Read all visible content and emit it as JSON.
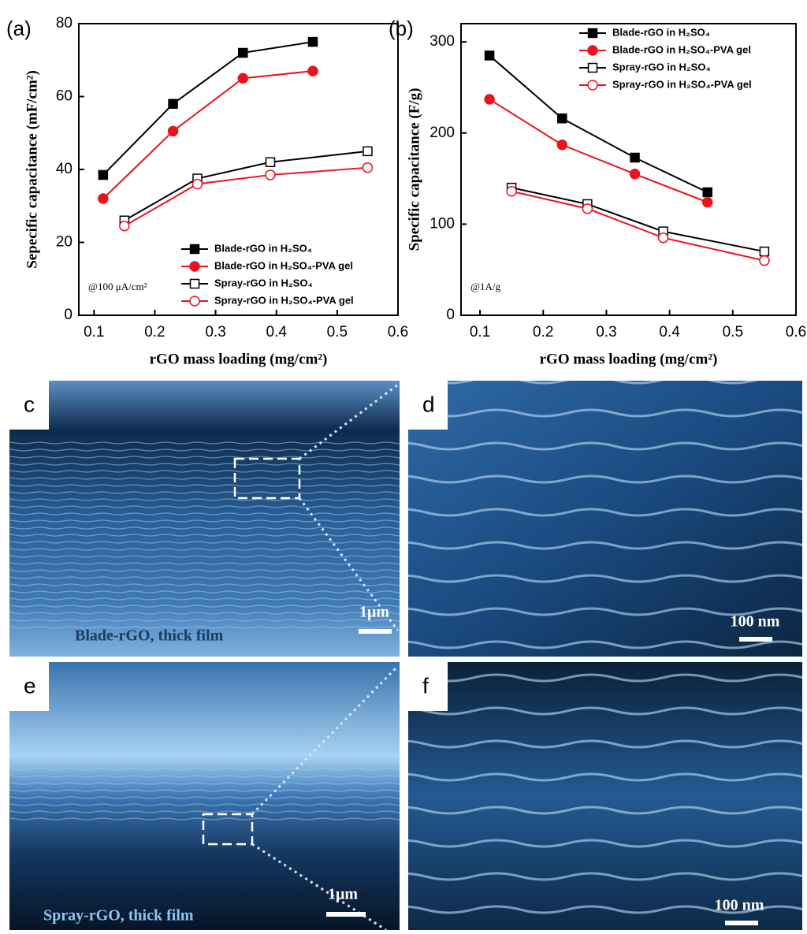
{
  "chart_data": [
    {
      "type": "line",
      "panel_label": "(a)",
      "xlabel": "rGO mass loading (mg/cm²)",
      "ylabel": "Sepecific capacitance (mF/cm²)",
      "annotation": "@100 μA/cm²",
      "xlim": [
        0.075,
        0.6
      ],
      "xticks": [
        0.1,
        0.2,
        0.3,
        0.4,
        0.5,
        0.6
      ],
      "ylim": [
        0,
        80
      ],
      "yticks": [
        0,
        20,
        40,
        60,
        80
      ],
      "legend": "lower right",
      "series": [
        {
          "name": "Blade-rGO in H₂SO₄",
          "color": "#000000",
          "marker": "square",
          "filled": true,
          "x": [
            0.115,
            0.23,
            0.345,
            0.46
          ],
          "values": [
            38.5,
            58,
            72,
            75
          ]
        },
        {
          "name": "Blade-rGO in H₂SO₄-PVA gel",
          "color": "#e8141c",
          "marker": "circle",
          "filled": true,
          "x": [
            0.115,
            0.23,
            0.345,
            0.46
          ],
          "values": [
            32,
            50.5,
            65,
            67
          ]
        },
        {
          "name": "Spray-rGO in H₂SO₄",
          "color": "#000000",
          "marker": "square",
          "filled": false,
          "x": [
            0.15,
            0.27,
            0.39,
            0.55
          ],
          "values": [
            26,
            37.5,
            42,
            45
          ]
        },
        {
          "name": "Spray-rGO in H₂SO₄-PVA gel",
          "color": "#e8141c",
          "marker": "circle",
          "filled": false,
          "x": [
            0.15,
            0.27,
            0.39,
            0.55
          ],
          "values": [
            24.5,
            36,
            38.5,
            40.5
          ]
        }
      ]
    },
    {
      "type": "line",
      "panel_label": "(b)",
      "xlabel": "rGO mass loading (mg/cm²)",
      "ylabel": "Specific capacitance (F/g)",
      "annotation": "@1A/g",
      "xlim": [
        0.07,
        0.6
      ],
      "xticks": [
        0.1,
        0.2,
        0.3,
        0.4,
        0.5,
        0.6
      ],
      "ylim": [
        0,
        320
      ],
      "yticks": [
        0,
        100,
        200,
        300
      ],
      "legend": "upper right",
      "series": [
        {
          "name": "Blade-rGO in H₂SO₄",
          "color": "#000000",
          "marker": "square",
          "filled": true,
          "x": [
            0.115,
            0.23,
            0.345,
            0.46
          ],
          "values": [
            285,
            216,
            173,
            135
          ]
        },
        {
          "name": "Blade-rGO in H₂SO₄-PVA gel",
          "color": "#e8141c",
          "marker": "circle",
          "filled": true,
          "x": [
            0.115,
            0.23,
            0.345,
            0.46
          ],
          "values": [
            237,
            187,
            155,
            124
          ]
        },
        {
          "name": "Spray-rGO in H₂SO₄",
          "color": "#000000",
          "marker": "square",
          "filled": false,
          "x": [
            0.15,
            0.27,
            0.39,
            0.55
          ],
          "values": [
            140,
            122,
            92,
            70
          ]
        },
        {
          "name": "Spray-rGO in H₂SO₄-PVA gel",
          "color": "#e8141c",
          "marker": "circle",
          "filled": false,
          "x": [
            0.15,
            0.27,
            0.39,
            0.55
          ],
          "values": [
            136,
            117,
            85,
            60
          ]
        }
      ]
    }
  ],
  "panels": [
    {
      "label": "c",
      "caption": "Blade-rGO, thick film",
      "scale": "1μm"
    },
    {
      "label": "d",
      "scale": "100 nm"
    },
    {
      "label": "e",
      "caption": "Spray-rGO, thick film",
      "scale": "1μm"
    },
    {
      "label": "f",
      "scale": "100 nm"
    }
  ]
}
